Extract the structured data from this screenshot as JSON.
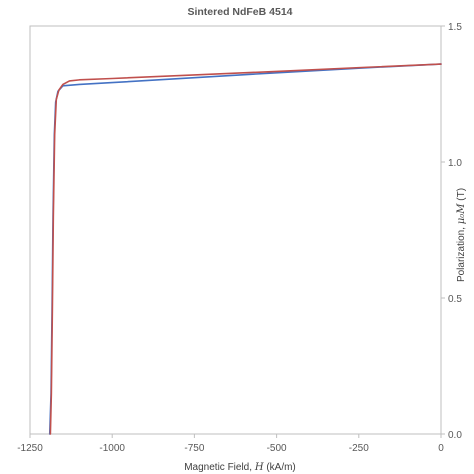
{
  "chart_data": {
    "type": "line",
    "title": "Sintered NdFeB 4514",
    "xlabel": {
      "prefix": "Magnetic Field, ",
      "symbol": "H",
      "suffix": " (kA/m)"
    },
    "ylabel": {
      "prefix": "Polarization, ",
      "symbol": "μ₀M",
      "suffix": " (T)"
    },
    "xlim": [
      -1250,
      0
    ],
    "ylim": [
      0,
      1.5
    ],
    "xticks": [
      -1250,
      -1000,
      -750,
      -500,
      -250,
      0
    ],
    "yticks": [
      0.0,
      0.5,
      1.0,
      1.5
    ],
    "xtick_labels": [
      "-1250",
      "-1000",
      "-750",
      "-500",
      "-250",
      "0"
    ],
    "ytick_labels": [
      "0.0",
      "0.5",
      "1.0",
      "1.5"
    ],
    "y_axis_side": "right",
    "grid": false,
    "series": [
      {
        "color": "#4472c4",
        "x": [
          0,
          -250,
          -500,
          -750,
          -1000,
          -1100,
          -1150,
          -1165,
          -1172,
          -1176,
          -1180,
          -1183,
          -1186,
          -1190
        ],
        "y": [
          1.36,
          1.345,
          1.328,
          1.31,
          1.292,
          1.285,
          1.28,
          1.26,
          1.22,
          1.1,
          0.8,
          0.45,
          0.15,
          0.0
        ]
      },
      {
        "color": "#c0504d",
        "x": [
          0,
          -250,
          -500,
          -750,
          -1000,
          -1100,
          -1130,
          -1150,
          -1162,
          -1170,
          -1175,
          -1179,
          -1182,
          -1185,
          -1188
        ],
        "y": [
          1.36,
          1.347,
          1.333,
          1.32,
          1.307,
          1.302,
          1.298,
          1.285,
          1.265,
          1.23,
          1.1,
          0.8,
          0.45,
          0.15,
          0.0
        ]
      }
    ]
  }
}
